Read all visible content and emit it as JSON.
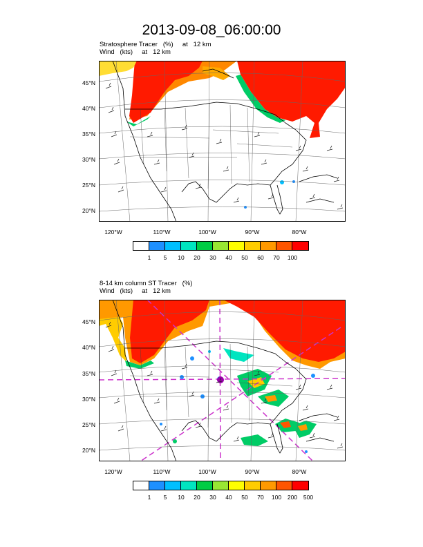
{
  "title": "2013-09-08_06:00:00",
  "panels": [
    {
      "subtitle_line1": "Stratosphere Tracer   (%)     at   12 km",
      "subtitle_line2": "Wind   (kts)     at   12 km",
      "lat_labels": [
        "45°N",
        "40°N",
        "35°N",
        "30°N",
        "25°N",
        "20°N"
      ],
      "lon_labels": [
        "120°W",
        "110°W",
        "100°W",
        "90°W",
        "80°W"
      ],
      "colorbar_labels": [
        "1",
        "5",
        "10",
        "20",
        "30",
        "40",
        "50",
        "60",
        "70",
        "100"
      ]
    },
    {
      "subtitle_line1": "8-14 km column ST Tracer   (%)",
      "subtitle_line2": "Wind   (kts)     at   12 km",
      "lat_labels": [
        "45°N",
        "40°N",
        "35°N",
        "30°N",
        "25°N",
        "20°N"
      ],
      "lon_labels": [
        "120°W",
        "110°W",
        "100°W",
        "90°W",
        "80°W"
      ],
      "colorbar_labels": [
        "1",
        "5",
        "10",
        "20",
        "30",
        "40",
        "50",
        "70",
        "100",
        "200",
        "500"
      ]
    }
  ],
  "colorbar_colors": [
    "#ffffff",
    "#1e90ff",
    "#00bfff",
    "#00e5c0",
    "#00cc44",
    "#99e633",
    "#ffff00",
    "#ffcc00",
    "#ff9900",
    "#ff5500",
    "#ff0000"
  ],
  "cross_section_color": "#cc33cc"
}
